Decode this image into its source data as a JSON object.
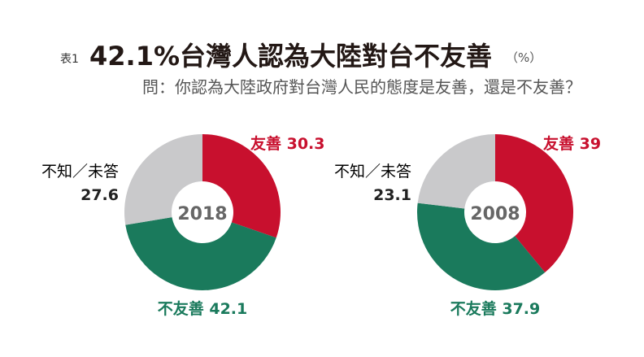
{
  "header": {
    "tag": "表1",
    "title": "42.1%台灣人認為大陸對台不友善",
    "unit": "（%）",
    "question": "問：你認為大陸政府對台灣人民的態度是友善，還是不友善？"
  },
  "colors": {
    "friendly": "#c8102e",
    "unfriendly": "#1a7a5c",
    "unknown": "#c9c9cb"
  },
  "chart_data": [
    {
      "type": "pie",
      "title": "2018",
      "categories": [
        "友善",
        "不友善",
        "不知／未答"
      ],
      "values": [
        30.3,
        42.1,
        27.6
      ]
    },
    {
      "type": "pie",
      "title": "2008",
      "categories": [
        "友善",
        "不友善",
        "不知／未答"
      ],
      "values": [
        39,
        37.9,
        23.1
      ]
    }
  ]
}
